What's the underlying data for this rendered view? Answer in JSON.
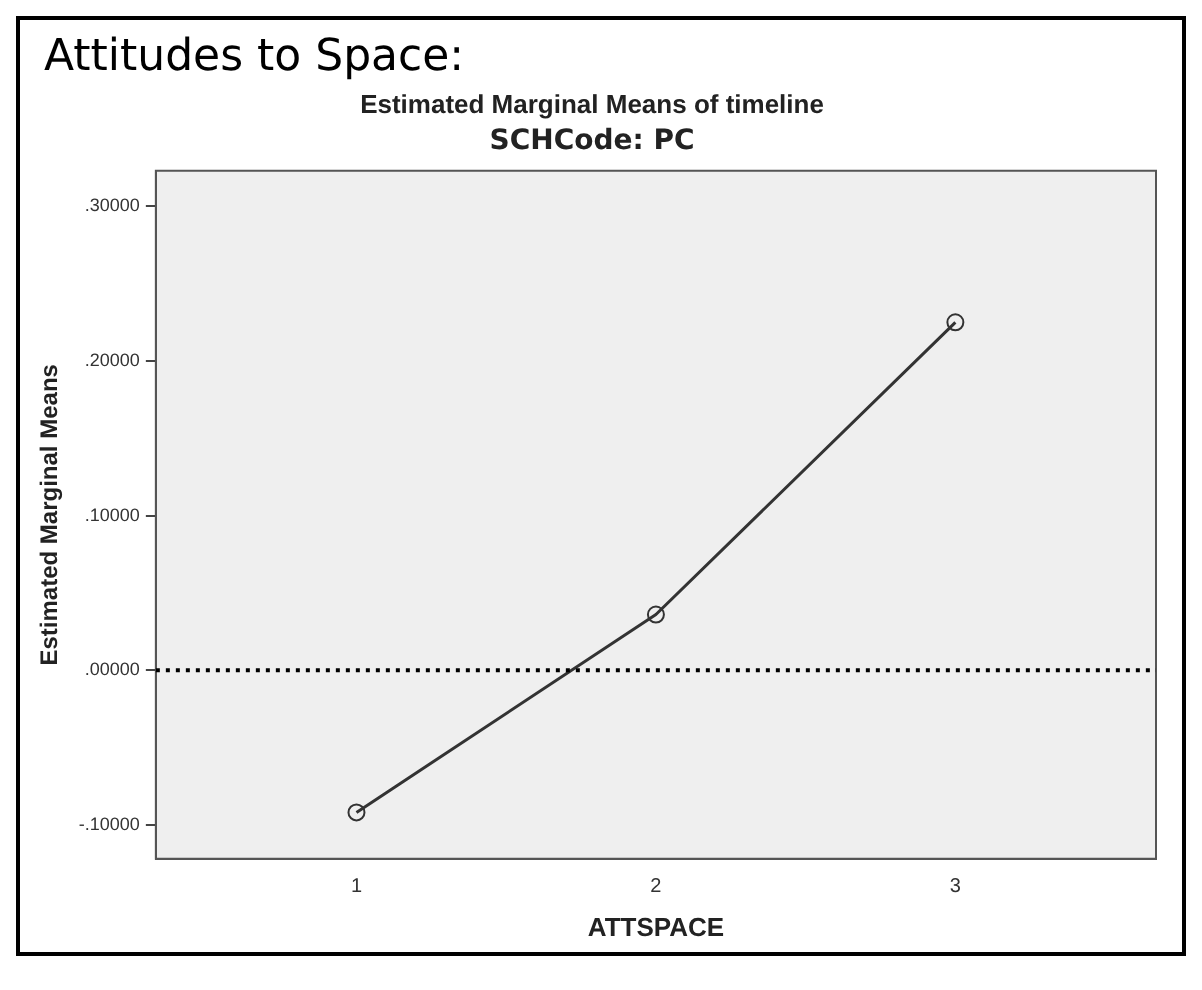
{
  "chart_data": {
    "type": "line",
    "title": "Attitudes to Space:",
    "subtitle": "Estimated Marginal Means of timeline",
    "annotations": [
      "SCHCode: PC"
    ],
    "xlabel": "ATTSPACE",
    "ylabel": "Estimated Marginal Means",
    "x": [
      1,
      2,
      3
    ],
    "series": [
      {
        "color": "#333333",
        "values": [
          -0.092,
          0.036,
          0.225
        ]
      }
    ],
    "xlim": [
      0.33,
      3.67
    ],
    "xticks": [
      1,
      2,
      3
    ],
    "ylim": [
      -0.122,
      0.323
    ],
    "yticks": [
      {
        "value": -0.1,
        "label": "-.10000"
      },
      {
        "value": 0,
        "label": ".00000"
      },
      {
        "value": 0.1,
        "label": ".10000"
      },
      {
        "value": 0.2,
        "label": ".20000"
      },
      {
        "value": 0.3,
        "label": ".30000"
      }
    ],
    "ref_lines": [
      {
        "axis": "y",
        "value": 0,
        "color": "#000000",
        "line_style": "dotted"
      }
    ],
    "marker": "circle",
    "grid": false,
    "legend": false
  }
}
